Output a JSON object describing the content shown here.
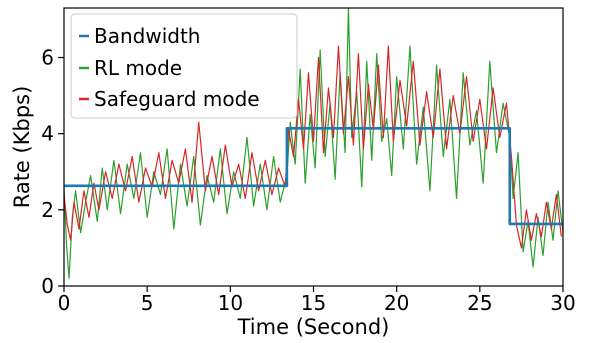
{
  "chart_data": {
    "type": "line",
    "title": "",
    "xlabel": "Time (Second)",
    "ylabel": "Rate (Kbps)",
    "xlim": [
      0,
      30
    ],
    "ylim": [
      0,
      7.3
    ],
    "xticks": [
      "0",
      "5",
      "10",
      "15",
      "20",
      "25",
      "30"
    ],
    "yticks": [
      "0",
      "2",
      "4",
      "6"
    ],
    "grid": false,
    "legend_position": "top-left",
    "series": [
      {
        "name": "Bandwidth",
        "color": "#1f77b4",
        "style": "step",
        "x": [
          0,
          13.4,
          13.4,
          26.8,
          26.8,
          30
        ],
        "y": [
          2.63,
          2.63,
          4.14,
          4.14,
          1.63,
          1.63
        ]
      },
      {
        "name": "RL mode",
        "color": "#2ca02c",
        "style": "noisy",
        "x": [
          0.0,
          0.15,
          0.3,
          0.5,
          0.7,
          1.0,
          1.3,
          1.6,
          2.0,
          2.3,
          2.6,
          3.0,
          3.4,
          3.8,
          4.2,
          4.6,
          5.0,
          5.4,
          5.8,
          6.2,
          6.6,
          7.0,
          7.4,
          7.8,
          8.2,
          8.6,
          9.0,
          9.4,
          9.8,
          10.2,
          10.6,
          11.0,
          11.4,
          11.8,
          12.2,
          12.6,
          13.0,
          13.4,
          13.6,
          13.9,
          14.2,
          14.5,
          14.8,
          15.1,
          15.4,
          15.7,
          16.0,
          16.3,
          16.6,
          16.9,
          17.1,
          17.3,
          17.6,
          17.9,
          18.2,
          18.5,
          18.8,
          19.1,
          19.4,
          19.7,
          20.0,
          20.4,
          20.8,
          21.2,
          21.6,
          22.0,
          22.4,
          22.8,
          23.2,
          23.6,
          24.0,
          24.4,
          24.8,
          25.2,
          25.6,
          26.0,
          26.4,
          26.8,
          27.0,
          27.3,
          27.6,
          27.9,
          28.2,
          28.5,
          28.8,
          29.1,
          29.4,
          29.7,
          30.0
        ],
        "y": [
          2.6,
          1.1,
          0.2,
          1.8,
          2.5,
          1.4,
          2.2,
          2.9,
          1.7,
          3.1,
          2.0,
          3.3,
          1.9,
          3.2,
          2.3,
          3.5,
          1.8,
          3.0,
          2.4,
          3.6,
          1.5,
          3.2,
          2.1,
          3.4,
          1.6,
          2.9,
          2.2,
          3.6,
          1.9,
          3.0,
          2.3,
          3.9,
          2.1,
          3.2,
          2.0,
          3.4,
          2.2,
          2.9,
          4.3,
          3.2,
          5.7,
          2.7,
          4.5,
          3.1,
          6.2,
          3.4,
          4.8,
          2.8,
          5.6,
          3.5,
          7.3,
          3.9,
          5.1,
          2.6,
          5.9,
          3.3,
          6.1,
          3.8,
          4.4,
          2.9,
          5.5,
          3.6,
          6.3,
          3.2,
          4.7,
          2.5,
          5.8,
          3.4,
          4.9,
          2.3,
          5.6,
          3.7,
          4.6,
          2.7,
          5.9,
          3.5,
          4.8,
          3.9,
          2.3,
          3.5,
          0.9,
          1.7,
          0.5,
          1.8,
          0.8,
          2.2,
          1.2,
          2.5,
          1.4
        ]
      },
      {
        "name": "Safeguard mode",
        "color": "#d62728",
        "style": "noisy",
        "x": [
          0.0,
          0.2,
          0.4,
          0.6,
          0.9,
          1.2,
          1.5,
          1.8,
          2.1,
          2.5,
          2.9,
          3.3,
          3.7,
          4.1,
          4.5,
          4.9,
          5.3,
          5.7,
          6.1,
          6.5,
          6.9,
          7.3,
          7.7,
          8.1,
          8.5,
          8.9,
          9.3,
          9.7,
          10.1,
          10.5,
          10.9,
          11.3,
          11.7,
          12.1,
          12.5,
          12.9,
          13.3,
          13.5,
          13.8,
          14.1,
          14.4,
          14.7,
          15.0,
          15.3,
          15.6,
          15.9,
          16.2,
          16.5,
          16.8,
          17.1,
          17.4,
          17.7,
          18.0,
          18.3,
          18.6,
          18.9,
          19.2,
          19.5,
          19.8,
          20.2,
          20.6,
          21.0,
          21.4,
          21.8,
          22.2,
          22.6,
          23.0,
          23.4,
          23.8,
          24.2,
          24.6,
          25.0,
          25.4,
          25.8,
          26.2,
          26.6,
          26.9,
          27.2,
          27.5,
          27.8,
          28.1,
          28.4,
          28.7,
          29.0,
          29.3,
          29.6,
          29.9
        ],
        "y": [
          2.4,
          1.6,
          1.2,
          2.2,
          1.5,
          2.5,
          1.8,
          2.7,
          2.0,
          3.0,
          2.3,
          3.2,
          2.5,
          3.4,
          2.2,
          3.1,
          2.6,
          3.5,
          2.3,
          3.3,
          2.7,
          3.6,
          2.2,
          4.3,
          2.5,
          3.4,
          2.4,
          3.7,
          2.6,
          3.2,
          2.3,
          3.5,
          2.5,
          3.3,
          2.4,
          3.1,
          2.6,
          4.1,
          3.4,
          4.9,
          3.6,
          5.6,
          3.8,
          6.0,
          3.5,
          5.2,
          3.9,
          6.3,
          4.0,
          5.5,
          3.7,
          6.1,
          3.6,
          5.3,
          4.1,
          5.8,
          3.9,
          6.3,
          3.8,
          5.4,
          4.2,
          5.9,
          3.7,
          5.1,
          3.9,
          5.7,
          3.6,
          5.0,
          4.0,
          5.5,
          3.8,
          4.9,
          3.6,
          5.2,
          3.9,
          4.8,
          3.4,
          1.6,
          1.0,
          2.0,
          1.2,
          1.9,
          1.3,
          2.2,
          1.5,
          2.4,
          1.3
        ]
      }
    ]
  }
}
